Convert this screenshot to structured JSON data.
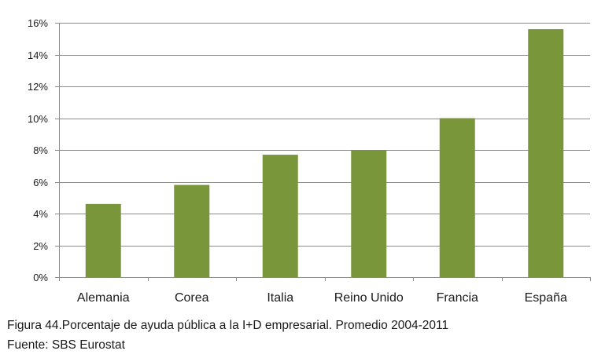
{
  "chart_data": {
    "type": "bar",
    "categories": [
      "Alemania",
      "Corea",
      "Italia",
      "Reino Unido",
      "Francia",
      "España"
    ],
    "values": [
      4.6,
      5.8,
      7.7,
      8.0,
      10.0,
      15.6
    ],
    "ylim": [
      0,
      16
    ],
    "yticks": [
      0,
      2,
      4,
      6,
      8,
      10,
      12,
      14,
      16
    ],
    "ytick_suffix": "%",
    "grid": true,
    "bar_color": "#7a963a",
    "grid_color": "#8c8c8c"
  },
  "caption": {
    "figure": "Figura 44.Porcentaje de ayuda pública a la I+D empresarial. Promedio 2004-2011",
    "source": "Fuente: SBS Eurostat"
  }
}
